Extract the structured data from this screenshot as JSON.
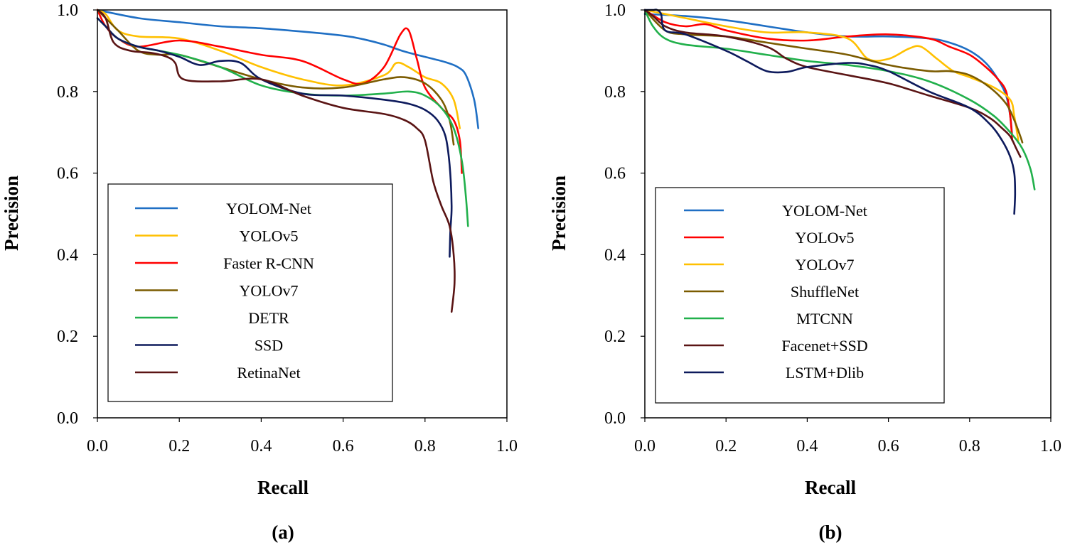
{
  "chart_data": [
    {
      "type": "line",
      "panel_label": "(a)",
      "xlabel": "Recall",
      "ylabel": "Precision",
      "xlim": [
        0,
        1
      ],
      "ylim": [
        0,
        1
      ],
      "xticks": [
        "0.0",
        "0.2",
        "0.4",
        "0.6",
        "0.8",
        "1.0"
      ],
      "yticks": [
        "0.0",
        "0.2",
        "0.4",
        "0.6",
        "0.8",
        "1.0"
      ],
      "grid": false,
      "legend_position": "lower-left",
      "series": [
        {
          "name": "YOLOM-Net",
          "color": "#1f6fc4",
          "x": [
            0,
            0.1,
            0.2,
            0.3,
            0.4,
            0.5,
            0.6,
            0.65,
            0.7,
            0.75,
            0.8,
            0.85,
            0.88,
            0.9,
            0.92,
            0.93
          ],
          "y": [
            1.0,
            0.98,
            0.97,
            0.96,
            0.955,
            0.947,
            0.937,
            0.928,
            0.915,
            0.898,
            0.885,
            0.872,
            0.86,
            0.84,
            0.78,
            0.71
          ]
        },
        {
          "name": "YOLOv5",
          "color": "#ffc000",
          "x": [
            0,
            0.02,
            0.05,
            0.1,
            0.2,
            0.3,
            0.4,
            0.5,
            0.6,
            0.7,
            0.73,
            0.76,
            0.8,
            0.84,
            0.87,
            0.885
          ],
          "y": [
            1.0,
            0.99,
            0.95,
            0.935,
            0.93,
            0.9,
            0.86,
            0.83,
            0.815,
            0.84,
            0.87,
            0.86,
            0.835,
            0.82,
            0.78,
            0.71
          ]
        },
        {
          "name": "Faster R-CNN",
          "color": "#ff0000",
          "x": [
            0,
            0.02,
            0.05,
            0.1,
            0.2,
            0.3,
            0.4,
            0.5,
            0.6,
            0.65,
            0.7,
            0.74,
            0.76,
            0.78,
            0.8,
            0.84,
            0.87,
            0.885,
            0.89
          ],
          "y": [
            1.0,
            0.96,
            0.93,
            0.91,
            0.925,
            0.91,
            0.89,
            0.875,
            0.83,
            0.82,
            0.86,
            0.94,
            0.95,
            0.88,
            0.81,
            0.76,
            0.73,
            0.68,
            0.6
          ]
        },
        {
          "name": "YOLOv7",
          "color": "#7b5b00",
          "x": [
            0,
            0.02,
            0.05,
            0.1,
            0.15,
            0.2,
            0.3,
            0.4,
            0.5,
            0.6,
            0.7,
            0.75,
            0.8,
            0.84,
            0.86,
            0.87
          ],
          "y": [
            1.0,
            0.98,
            0.95,
            0.9,
            0.89,
            0.89,
            0.86,
            0.83,
            0.81,
            0.81,
            0.83,
            0.835,
            0.82,
            0.78,
            0.73,
            0.67
          ]
        },
        {
          "name": "DETR",
          "color": "#21b04b",
          "x": [
            0,
            0.02,
            0.05,
            0.1,
            0.2,
            0.3,
            0.4,
            0.5,
            0.6,
            0.7,
            0.76,
            0.8,
            0.84,
            0.87,
            0.89,
            0.9,
            0.905
          ],
          "y": [
            0.98,
            0.96,
            0.93,
            0.91,
            0.89,
            0.86,
            0.815,
            0.795,
            0.79,
            0.795,
            0.8,
            0.79,
            0.76,
            0.71,
            0.63,
            0.54,
            0.47
          ]
        },
        {
          "name": "SSD",
          "color": "#0d1a5c",
          "x": [
            0,
            0.02,
            0.05,
            0.1,
            0.15,
            0.2,
            0.25,
            0.3,
            0.35,
            0.4,
            0.5,
            0.6,
            0.7,
            0.76,
            0.8,
            0.83,
            0.85,
            0.86,
            0.865,
            0.862,
            0.86
          ],
          "y": [
            0.98,
            0.96,
            0.93,
            0.91,
            0.9,
            0.885,
            0.865,
            0.875,
            0.87,
            0.83,
            0.795,
            0.79,
            0.78,
            0.77,
            0.755,
            0.73,
            0.69,
            0.62,
            0.52,
            0.46,
            0.395
          ]
        },
        {
          "name": "RetinaNet",
          "color": "#5a1414",
          "x": [
            0,
            0.02,
            0.04,
            0.08,
            0.13,
            0.17,
            0.19,
            0.21,
            0.3,
            0.4,
            0.5,
            0.6,
            0.7,
            0.75,
            0.78,
            0.8,
            0.82,
            0.84,
            0.86,
            0.87,
            0.872,
            0.865
          ],
          "y": [
            1.0,
            0.98,
            0.92,
            0.9,
            0.895,
            0.885,
            0.87,
            0.83,
            0.825,
            0.83,
            0.79,
            0.76,
            0.745,
            0.73,
            0.71,
            0.68,
            0.58,
            0.52,
            0.47,
            0.4,
            0.33,
            0.26
          ]
        }
      ]
    },
    {
      "type": "line",
      "panel_label": "(b)",
      "xlabel": "Recall",
      "ylabel": "Precision",
      "xlim": [
        0,
        1
      ],
      "ylim": [
        0,
        1
      ],
      "xticks": [
        "0.0",
        "0.2",
        "0.4",
        "0.6",
        "0.8",
        "1.0"
      ],
      "yticks": [
        "0.0",
        "0.2",
        "0.4",
        "0.6",
        "0.8",
        "1.0"
      ],
      "grid": false,
      "legend_position": "lower-left",
      "series": [
        {
          "name": "YOLOM-Net",
          "color": "#1f6fc4",
          "x": [
            0,
            0.1,
            0.2,
            0.3,
            0.4,
            0.5,
            0.6,
            0.7,
            0.75,
            0.8,
            0.84,
            0.87,
            0.89,
            0.9,
            0.905
          ],
          "y": [
            0.99,
            0.985,
            0.975,
            0.96,
            0.945,
            0.935,
            0.935,
            0.93,
            0.92,
            0.9,
            0.87,
            0.83,
            0.79,
            0.74,
            0.69
          ]
        },
        {
          "name": "YOLOv5",
          "color": "#ff0000",
          "x": [
            0,
            0.05,
            0.1,
            0.15,
            0.2,
            0.3,
            0.4,
            0.5,
            0.6,
            0.7,
            0.75,
            0.8,
            0.84,
            0.87,
            0.89,
            0.9,
            0.905
          ],
          "y": [
            1.0,
            0.97,
            0.96,
            0.965,
            0.95,
            0.93,
            0.925,
            0.935,
            0.94,
            0.93,
            0.91,
            0.89,
            0.86,
            0.83,
            0.8,
            0.74,
            0.68
          ]
        },
        {
          "name": "YOLOv7",
          "color": "#ffc000",
          "x": [
            0,
            0.05,
            0.1,
            0.2,
            0.3,
            0.4,
            0.5,
            0.55,
            0.6,
            0.65,
            0.68,
            0.72,
            0.76,
            0.8,
            0.86,
            0.9,
            0.91,
            0.92
          ],
          "y": [
            1.0,
            0.99,
            0.98,
            0.96,
            0.945,
            0.945,
            0.93,
            0.88,
            0.88,
            0.905,
            0.91,
            0.88,
            0.85,
            0.835,
            0.81,
            0.78,
            0.74,
            0.68
          ]
        },
        {
          "name": "ShuffleNet",
          "color": "#7b5b00",
          "x": [
            0,
            0.05,
            0.1,
            0.2,
            0.3,
            0.4,
            0.5,
            0.6,
            0.7,
            0.75,
            0.8,
            0.85,
            0.89,
            0.91,
            0.925,
            0.93
          ],
          "y": [
            1.0,
            0.95,
            0.94,
            0.935,
            0.92,
            0.905,
            0.89,
            0.865,
            0.85,
            0.85,
            0.84,
            0.81,
            0.77,
            0.73,
            0.69,
            0.675
          ]
        },
        {
          "name": "MTCNN",
          "color": "#21b04b",
          "x": [
            0,
            0.02,
            0.05,
            0.1,
            0.2,
            0.3,
            0.4,
            0.5,
            0.6,
            0.7,
            0.8,
            0.86,
            0.9,
            0.93,
            0.95,
            0.96
          ],
          "y": [
            1.0,
            0.96,
            0.93,
            0.915,
            0.905,
            0.89,
            0.875,
            0.865,
            0.85,
            0.825,
            0.78,
            0.74,
            0.7,
            0.66,
            0.61,
            0.56
          ]
        },
        {
          "name": "Facenet+SSD",
          "color": "#5a1414",
          "x": [
            0,
            0.02,
            0.05,
            0.1,
            0.2,
            0.3,
            0.35,
            0.4,
            0.5,
            0.6,
            0.7,
            0.8,
            0.85,
            0.88,
            0.9,
            0.915,
            0.925
          ],
          "y": [
            1.0,
            0.985,
            0.96,
            0.945,
            0.935,
            0.91,
            0.88,
            0.86,
            0.84,
            0.82,
            0.79,
            0.76,
            0.735,
            0.71,
            0.69,
            0.66,
            0.64
          ]
        },
        {
          "name": "LSTM+Dlib",
          "color": "#0d1a5c",
          "x": [
            0,
            0.02,
            0.03,
            0.04,
            0.05,
            0.1,
            0.2,
            0.25,
            0.3,
            0.35,
            0.4,
            0.5,
            0.55,
            0.6,
            0.7,
            0.8,
            0.85,
            0.88,
            0.9,
            0.91,
            0.912,
            0.91
          ],
          "y": [
            1.0,
            1.0,
            1.0,
            0.99,
            0.95,
            0.94,
            0.9,
            0.875,
            0.85,
            0.848,
            0.86,
            0.87,
            0.865,
            0.85,
            0.8,
            0.76,
            0.72,
            0.68,
            0.64,
            0.6,
            0.55,
            0.5
          ]
        }
      ]
    }
  ]
}
